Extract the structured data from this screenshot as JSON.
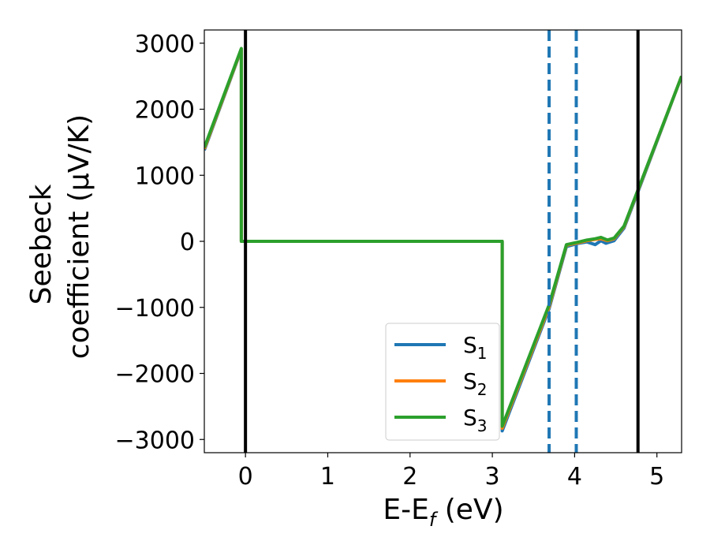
{
  "chart_data": {
    "type": "line",
    "xlabel": "E-E",
    "xlabel_sub": "f",
    "xlabel_unit": " (eV)",
    "ylabel_line1": "Seebeck",
    "ylabel_line2": "coefficient  (μV/K)",
    "xlim": [
      -0.5,
      5.3
    ],
    "ylim": [
      -3200,
      3200
    ],
    "xticks": [
      0,
      1,
      2,
      3,
      4,
      5
    ],
    "xtick_labels": [
      "0",
      "1",
      "2",
      "3",
      "4",
      "5"
    ],
    "yticks": [
      -3000,
      -2000,
      -1000,
      0,
      1000,
      2000,
      3000
    ],
    "ytick_labels": [
      "−3000",
      "−2000",
      "−1000",
      "0",
      "1000",
      "2000",
      "3000"
    ],
    "vertical_lines_solid": [
      0.0,
      4.77
    ],
    "vertical_lines_dashed": [
      3.69,
      4.02
    ],
    "legend_position": "lower-right",
    "grid": false,
    "series": [
      {
        "name": "S",
        "subscript": "1",
        "color": "#1f77b4",
        "points": [
          [
            -0.5,
            1380
          ],
          [
            -0.05,
            2900
          ],
          [
            -0.05,
            0
          ],
          [
            3.12,
            0
          ],
          [
            3.12,
            -2870
          ],
          [
            3.69,
            -1020
          ],
          [
            3.9,
            -80
          ],
          [
            4.05,
            -30
          ],
          [
            4.15,
            -10
          ],
          [
            4.25,
            -50
          ],
          [
            4.32,
            10
          ],
          [
            4.38,
            -30
          ],
          [
            4.48,
            10
          ],
          [
            4.6,
            200
          ],
          [
            4.77,
            750
          ],
          [
            5.3,
            2500
          ]
        ]
      },
      {
        "name": "S",
        "subscript": "2",
        "color": "#ff7f0e",
        "points": [
          [
            -0.5,
            1400
          ],
          [
            -0.05,
            2910
          ],
          [
            -0.05,
            0
          ],
          [
            3.12,
            0
          ],
          [
            3.12,
            -2830
          ],
          [
            3.69,
            -990
          ],
          [
            3.9,
            -60
          ],
          [
            4.05,
            -20
          ],
          [
            4.15,
            10
          ],
          [
            4.25,
            30
          ],
          [
            4.32,
            40
          ],
          [
            4.4,
            10
          ],
          [
            4.48,
            40
          ],
          [
            4.6,
            220
          ],
          [
            4.77,
            770
          ],
          [
            5.3,
            2500
          ]
        ]
      },
      {
        "name": "S",
        "subscript": "3",
        "color": "#2ca02c",
        "points": [
          [
            -0.5,
            1420
          ],
          [
            -0.05,
            2920
          ],
          [
            -0.05,
            0
          ],
          [
            3.12,
            0
          ],
          [
            3.12,
            -2800
          ],
          [
            3.69,
            -960
          ],
          [
            3.9,
            -50
          ],
          [
            4.05,
            -10
          ],
          [
            4.15,
            20
          ],
          [
            4.25,
            40
          ],
          [
            4.32,
            60
          ],
          [
            4.4,
            20
          ],
          [
            4.48,
            50
          ],
          [
            4.6,
            230
          ],
          [
            4.77,
            780
          ],
          [
            5.3,
            2500
          ]
        ]
      }
    ]
  }
}
